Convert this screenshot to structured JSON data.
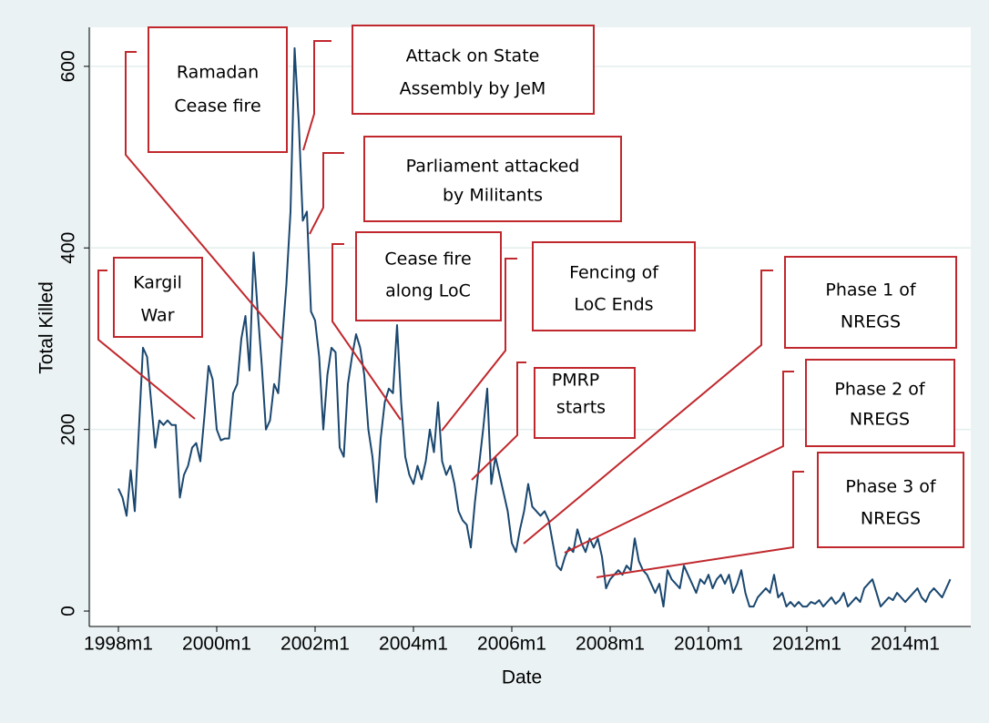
{
  "chart_data": {
    "type": "line",
    "x_label": "Date",
    "y_label": "Total Killed",
    "categories": [
      "1998m1",
      null,
      null,
      null,
      null,
      null,
      null,
      null,
      null,
      null,
      null,
      null,
      null,
      null,
      null,
      null,
      null,
      null,
      null,
      null,
      null,
      null,
      null,
      null,
      "2000m1",
      null,
      null,
      null,
      null,
      null,
      null,
      null,
      null,
      null,
      null,
      null,
      null,
      null,
      null,
      null,
      null,
      null,
      null,
      null,
      null,
      null,
      null,
      null,
      "2002m1",
      null,
      null,
      null,
      null,
      null,
      null,
      null,
      null,
      null,
      null,
      null,
      null,
      null,
      null,
      null,
      null,
      null,
      null,
      null,
      null,
      null,
      null,
      null,
      "2004m1",
      null,
      null,
      null,
      null,
      null,
      null,
      null,
      null,
      null,
      null,
      null,
      null,
      null,
      null,
      null,
      null,
      null,
      null,
      null,
      null,
      null,
      null,
      null,
      "2006m1",
      null,
      null,
      null,
      null,
      null,
      null,
      null,
      null,
      null,
      null,
      null,
      null,
      null,
      null,
      null,
      null,
      null,
      null,
      null,
      null,
      null,
      null,
      null,
      "2008m1",
      null,
      null,
      null,
      null,
      null,
      null,
      null,
      null,
      null,
      null,
      null,
      null,
      null,
      null,
      null,
      null,
      null,
      null,
      null,
      null,
      null,
      null,
      null,
      "2010m1",
      null,
      null,
      null,
      null,
      null,
      null,
      null,
      null,
      null,
      null,
      null,
      null,
      null,
      null,
      null,
      null,
      null,
      null,
      null,
      null,
      null,
      null,
      null,
      "2012m1",
      null,
      null,
      null,
      null,
      null,
      null,
      null,
      null,
      null,
      null,
      null,
      null,
      null,
      null,
      null,
      null,
      null,
      null,
      null,
      null,
      null,
      null,
      null,
      "2014m1",
      null,
      null,
      null,
      null,
      null,
      null,
      null,
      null,
      null,
      null,
      null
    ],
    "series": [
      {
        "color": "#1a476f",
        "values": [
          135,
          125,
          105,
          155,
          110,
          200,
          290,
          280,
          230,
          180,
          210,
          205,
          210,
          205,
          205,
          125,
          150,
          160,
          180,
          185,
          165,
          215,
          270,
          255,
          200,
          188,
          190,
          190,
          240,
          250,
          300,
          325,
          265,
          395,
          330,
          270,
          200,
          210,
          250,
          240,
          300,
          360,
          440,
          620,
          540,
          430,
          440,
          330,
          320,
          280,
          200,
          260,
          290,
          285,
          180,
          170,
          250,
          280,
          305,
          290,
          260,
          200,
          170,
          120,
          190,
          230,
          245,
          240,
          315,
          230,
          170,
          150,
          140,
          160,
          145,
          165,
          200,
          175,
          230,
          165,
          150,
          160,
          140,
          110,
          100,
          95,
          70,
          120,
          160,
          200,
          245,
          140,
          170,
          150,
          130,
          110,
          75,
          65,
          90,
          110,
          140,
          115,
          110,
          105,
          110,
          100,
          75,
          50,
          45,
          60,
          70,
          65,
          90,
          75,
          65,
          80,
          70,
          80,
          60,
          25,
          35,
          40,
          45,
          40,
          50,
          45,
          80,
          55,
          45,
          40,
          30,
          20,
          30,
          5,
          45,
          35,
          30,
          25,
          50,
          40,
          30,
          20,
          35,
          30,
          40,
          25,
          35,
          40,
          30,
          40,
          20,
          30,
          45,
          20,
          5,
          5,
          15,
          20,
          25,
          20,
          40,
          15,
          20,
          5,
          10,
          5,
          10,
          5,
          5,
          10,
          8,
          12,
          5,
          10,
          15,
          8,
          12,
          20,
          5,
          10,
          15,
          10,
          25,
          30,
          35,
          20,
          5,
          10,
          15,
          12,
          20,
          15,
          10,
          15,
          20,
          25,
          15,
          10,
          20,
          25,
          20,
          15,
          25,
          35
        ]
      }
    ],
    "ylim": [
      -17,
      643
    ],
    "yticks": [
      0,
      200,
      400,
      600
    ],
    "grid": true,
    "annotations": [
      {
        "lines": [
          "Kargil",
          "War"
        ]
      },
      {
        "lines": [
          "Ramadan",
          "Cease fire"
        ]
      },
      {
        "lines": [
          "Attack on State",
          "Assembly by JeM"
        ]
      },
      {
        "lines": [
          "Parliament attacked",
          "by Militants"
        ]
      },
      {
        "lines": [
          "Cease fire",
          "along LoC"
        ]
      },
      {
        "lines": [
          "Fencing of",
          "LoC Ends"
        ]
      },
      {
        "lines": [
          "PMRP",
          "starts"
        ]
      },
      {
        "lines": [
          "Phase 1 of",
          "NREGS"
        ]
      },
      {
        "lines": [
          "Phase 2 of",
          "NREGS"
        ]
      },
      {
        "lines": [
          "Phase 3 of",
          "NREGS"
        ]
      }
    ]
  }
}
